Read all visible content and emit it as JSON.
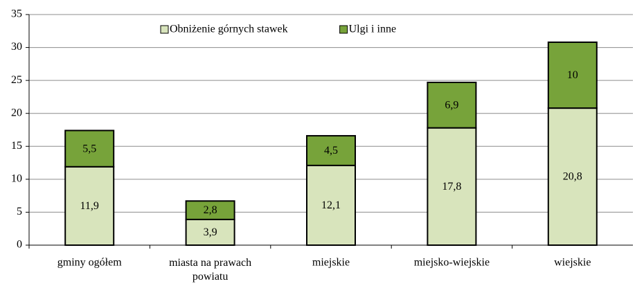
{
  "chart_data": {
    "type": "stacked_bar",
    "categories": [
      "gminy ogółem",
      "miasta na prawach powiatu",
      "miejskie",
      "miejsko-wiejskie",
      "wiejskie"
    ],
    "series": [
      {
        "name": "Obniżenie górnych stawek",
        "color": "#d8e4bc",
        "values": [
          11.9,
          3.9,
          12.1,
          17.8,
          20.8
        ],
        "value_labels": [
          "11,9",
          "3,9",
          "12,1",
          "17,8",
          "20,8"
        ]
      },
      {
        "name": "Ulgi i inne",
        "color": "#77a33a",
        "values": [
          5.5,
          2.8,
          4.5,
          6.9,
          10
        ],
        "value_labels": [
          "5,5",
          "2,8",
          "4,5",
          "6,9",
          "10"
        ]
      }
    ],
    "ylim": [
      0,
      35
    ],
    "yticks": [
      0,
      5,
      10,
      15,
      20,
      25,
      30,
      35
    ],
    "grid": true,
    "legend": "top"
  }
}
